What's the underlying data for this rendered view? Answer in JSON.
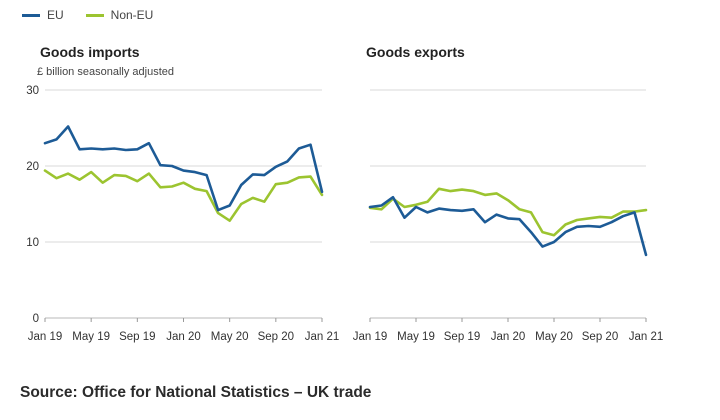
{
  "legend": [
    {
      "name": "EU",
      "color": "#1d5b96"
    },
    {
      "name": "Non-EU",
      "color": "#9cc430"
    }
  ],
  "unit_label": "£ billion seasonally adjusted",
  "source": "Source: Office for National Statistics – UK trade",
  "chart_data": [
    {
      "type": "line",
      "title": "Goods imports",
      "ylabel": "£ billion seasonally adjusted",
      "ylim": [
        0,
        30
      ],
      "yticks": [
        0,
        10,
        20,
        30
      ],
      "xtick_labels": [
        "Jan 19",
        "May 19",
        "Sep 19",
        "Jan 20",
        "May 20",
        "Sep 20",
        "Jan 21"
      ],
      "x": [
        "Jan 19",
        "Feb 19",
        "Mar 19",
        "Apr 19",
        "May 19",
        "Jun 19",
        "Jul 19",
        "Aug 19",
        "Sep 19",
        "Oct 19",
        "Nov 19",
        "Dec 19",
        "Jan 20",
        "Feb 20",
        "Mar 20",
        "Apr 20",
        "May 20",
        "Jun 20",
        "Jul 20",
        "Aug 20",
        "Sep 20",
        "Oct 20",
        "Nov 20",
        "Dec 20",
        "Jan 21"
      ],
      "series": [
        {
          "name": "EU",
          "color": "#1d5b96",
          "values": [
            23.0,
            23.5,
            25.2,
            22.2,
            22.3,
            22.2,
            22.3,
            22.1,
            22.2,
            23.0,
            20.1,
            20.0,
            19.4,
            19.2,
            18.8,
            14.2,
            14.8,
            17.5,
            18.9,
            18.8,
            19.9,
            20.6,
            22.3,
            22.8,
            16.6
          ]
        },
        {
          "name": "Non-EU",
          "color": "#9cc430",
          "values": [
            19.4,
            18.4,
            19.0,
            18.2,
            19.2,
            17.8,
            18.8,
            18.7,
            18.0,
            19.0,
            17.2,
            17.3,
            17.8,
            17.0,
            16.7,
            13.8,
            12.8,
            15.0,
            15.8,
            15.3,
            17.6,
            17.8,
            18.5,
            18.6,
            16.2
          ]
        }
      ]
    },
    {
      "type": "line",
      "title": "Goods exports",
      "ylim": [
        0,
        30
      ],
      "yticks": [
        0,
        10,
        20,
        30
      ],
      "xtick_labels": [
        "Jan 19",
        "May 19",
        "Sep 19",
        "Jan 20",
        "May 20",
        "Sep 20",
        "Jan 21"
      ],
      "x": [
        "Jan 19",
        "Feb 19",
        "Mar 19",
        "Apr 19",
        "May 19",
        "Jun 19",
        "Jul 19",
        "Aug 19",
        "Sep 19",
        "Oct 19",
        "Nov 19",
        "Dec 19",
        "Jan 20",
        "Feb 20",
        "Mar 20",
        "Apr 20",
        "May 20",
        "Jun 20",
        "Jul 20",
        "Aug 20",
        "Sep 20",
        "Oct 20",
        "Nov 20",
        "Dec 20",
        "Jan 21"
      ],
      "series": [
        {
          "name": "EU",
          "color": "#1d5b96",
          "values": [
            14.6,
            14.8,
            15.9,
            13.2,
            14.6,
            13.9,
            14.4,
            14.2,
            14.1,
            14.3,
            12.6,
            13.6,
            13.1,
            13.0,
            11.3,
            9.4,
            10.0,
            11.3,
            12.0,
            12.1,
            12.0,
            12.6,
            13.4,
            13.9,
            8.3
          ]
        },
        {
          "name": "Non-EU",
          "color": "#9cc430",
          "values": [
            14.5,
            14.3,
            15.7,
            14.6,
            14.9,
            15.3,
            17.0,
            16.7,
            16.9,
            16.7,
            16.2,
            16.4,
            15.5,
            14.3,
            13.9,
            11.3,
            10.9,
            12.3,
            12.9,
            13.1,
            13.3,
            13.2,
            14.0,
            14.0,
            14.2
          ]
        }
      ]
    }
  ]
}
